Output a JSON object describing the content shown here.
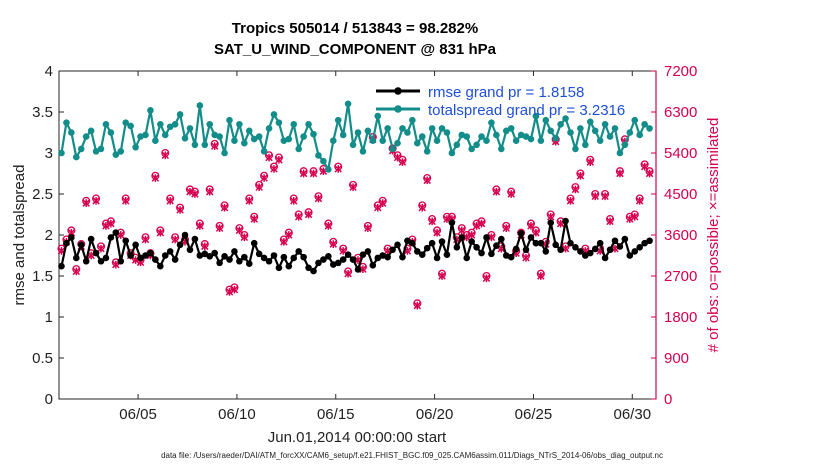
{
  "chart_data": {
    "type": "line",
    "title_line1": "Tropics 505014 / 513843 = 98.282%",
    "title_line2": "SAT_U_WIND_COMPONENT @ 831 hPa",
    "xlabel": "Jun.01,2014 00:00:00 start",
    "ylabel_left": "rmse and totalspread",
    "ylabel_right": "# of obs: o=possible; ×=assimilated",
    "footnote": "data file: /Users/raeder/DAI/ATM_forcXX/CAM6_setup/f.e21.FHIST_BGC.f09_025.CAM6assim.011/Diags_NTrS_2014-06/obs_diag_output.nc",
    "xlim": [
      1.0,
      31.2
    ],
    "ylim_left": [
      0,
      4
    ],
    "ylim_right": [
      0,
      7200
    ],
    "x_ticks": [
      5,
      10,
      15,
      20,
      25,
      30
    ],
    "x_tick_labels": [
      "06/05",
      "06/10",
      "06/15",
      "06/20",
      "06/25",
      "06/30"
    ],
    "y_ticks_left": [
      0,
      0.5,
      1,
      1.5,
      2,
      2.5,
      3,
      3.5,
      4
    ],
    "y_tick_labels_left": [
      "0",
      "0.5",
      "1",
      "1.5",
      "2",
      "2.5",
      "3",
      "3.5",
      "4"
    ],
    "y_ticks_right": [
      0,
      900,
      1800,
      2700,
      3600,
      4500,
      5400,
      6300,
      7200
    ],
    "y_tick_labels_right": [
      "0",
      "900",
      "1800",
      "2700",
      "3600",
      "4500",
      "5400",
      "6300",
      "7200"
    ],
    "legend": [
      {
        "label": "rmse grand pr = 1.8158",
        "color": "#000000"
      },
      {
        "label": "totalspread grand pr = 3.2316",
        "color": "#138d8a"
      }
    ],
    "colors": {
      "rmse": "#000000",
      "spread": "#138d8a",
      "obs": "#d6004f"
    },
    "x": [
      1.125,
      1.375,
      1.625,
      1.875,
      2.125,
      2.375,
      2.625,
      2.875,
      3.125,
      3.375,
      3.625,
      3.875,
      4.125,
      4.375,
      4.625,
      4.875,
      5.125,
      5.375,
      5.625,
      5.875,
      6.125,
      6.375,
      6.625,
      6.875,
      7.125,
      7.375,
      7.625,
      7.875,
      8.125,
      8.375,
      8.625,
      8.875,
      9.125,
      9.375,
      9.625,
      9.875,
      10.125,
      10.375,
      10.625,
      10.875,
      11.125,
      11.375,
      11.625,
      11.875,
      12.125,
      12.375,
      12.625,
      12.875,
      13.125,
      13.375,
      13.625,
      13.875,
      14.125,
      14.375,
      14.625,
      14.875,
      15.125,
      15.375,
      15.625,
      15.875,
      16.125,
      16.375,
      16.625,
      16.875,
      17.125,
      17.375,
      17.625,
      17.875,
      18.125,
      18.375,
      18.625,
      18.875,
      19.125,
      19.375,
      19.625,
      19.875,
      20.125,
      20.375,
      20.625,
      20.875,
      21.125,
      21.375,
      21.625,
      21.875,
      22.125,
      22.375,
      22.625,
      22.875,
      23.125,
      23.375,
      23.625,
      23.875,
      24.125,
      24.375,
      24.625,
      24.875,
      25.125,
      25.375,
      25.625,
      25.875,
      26.125,
      26.375,
      26.625,
      26.875,
      27.125,
      27.375,
      27.625,
      27.875,
      28.125,
      28.375,
      28.625,
      28.875,
      29.125,
      29.375,
      29.625,
      29.875,
      30.125,
      30.375,
      30.625,
      30.875
    ],
    "series": [
      {
        "name": "rmse",
        "values": [
          1.62,
          1.9,
          1.97,
          1.72,
          1.88,
          1.68,
          1.95,
          1.78,
          1.68,
          1.72,
          1.97,
          2.03,
          1.68,
          1.93,
          1.75,
          1.88,
          1.72,
          1.75,
          1.78,
          1.7,
          1.62,
          1.75,
          1.8,
          1.7,
          1.88,
          2.0,
          1.82,
          1.95,
          1.75,
          1.77,
          1.74,
          1.78,
          1.66,
          1.74,
          1.7,
          1.8,
          1.68,
          1.73,
          1.65,
          1.9,
          1.77,
          1.72,
          1.68,
          1.75,
          1.6,
          1.73,
          1.62,
          1.72,
          1.8,
          1.73,
          1.6,
          1.56,
          1.66,
          1.7,
          1.74,
          1.64,
          1.66,
          1.7,
          1.76,
          1.7,
          1.58,
          1.76,
          1.8,
          1.63,
          1.72,
          1.75,
          1.73,
          1.82,
          1.88,
          1.73,
          1.93,
          1.9,
          1.8,
          1.76,
          1.84,
          1.9,
          1.72,
          1.92,
          1.76,
          2.15,
          1.85,
          1.97,
          1.72,
          1.92,
          1.85,
          1.78,
          1.97,
          1.77,
          1.87,
          1.95,
          1.75,
          1.73,
          1.83,
          2.02,
          1.82,
          1.97,
          1.9,
          1.9,
          1.8,
          2.15,
          1.88,
          1.82,
          2.17,
          1.9,
          1.85,
          1.8,
          1.75,
          1.78,
          1.83,
          1.9,
          1.72,
          1.82,
          1.93,
          1.86,
          1.95,
          1.75,
          1.8,
          1.85,
          1.9,
          1.93
        ]
      },
      {
        "name": "totalspread",
        "values": [
          3.0,
          3.37,
          3.25,
          2.95,
          3.05,
          3.2,
          3.27,
          3.02,
          3.05,
          3.35,
          3.25,
          2.98,
          3.02,
          3.37,
          3.33,
          3.07,
          3.2,
          3.22,
          3.52,
          3.15,
          3.35,
          3.22,
          3.32,
          3.35,
          3.47,
          3.18,
          3.3,
          3.1,
          3.58,
          3.1,
          3.35,
          3.22,
          3.2,
          3.0,
          3.4,
          3.15,
          3.35,
          3.12,
          3.27,
          3.17,
          3.2,
          3.02,
          3.3,
          3.47,
          3.37,
          3.15,
          3.17,
          3.35,
          3.05,
          3.2,
          3.35,
          3.23,
          2.97,
          2.9,
          2.8,
          3.15,
          3.4,
          3.22,
          3.6,
          3.1,
          3.25,
          3.02,
          3.27,
          3.15,
          3.45,
          3.15,
          3.3,
          3.05,
          3.12,
          3.3,
          3.25,
          3.4,
          3.12,
          3.2,
          3.02,
          3.3,
          3.15,
          3.3,
          3.25,
          3.0,
          3.1,
          3.22,
          3.2,
          3.05,
          3.1,
          3.2,
          3.15,
          3.37,
          3.22,
          3.05,
          3.27,
          3.3,
          3.15,
          3.22,
          3.2,
          3.17,
          3.45,
          3.15,
          3.4,
          3.27,
          3.18,
          3.35,
          3.42,
          3.25,
          3.05,
          3.3,
          3.1,
          3.38,
          3.27,
          3.15,
          3.35,
          3.2,
          3.3,
          3.0,
          3.1,
          3.25,
          3.4,
          3.22,
          3.35,
          3.3
        ]
      },
      {
        "name": "obs_possible",
        "values": [
          3300,
          3500,
          3700,
          2850,
          3400,
          4350,
          3200,
          4400,
          3350,
          3850,
          3900,
          3000,
          3650,
          4400,
          3200,
          3100,
          3050,
          3550,
          3200,
          4900,
          3700,
          5400,
          4400,
          3550,
          4200,
          3500,
          4600,
          4550,
          3850,
          3400,
          4600,
          5600,
          3800,
          4250,
          2400,
          2450,
          3750,
          3600,
          4400,
          4000,
          4700,
          4900,
          5350,
          5100,
          5300,
          3500,
          3650,
          4400,
          4050,
          5000,
          4100,
          5000,
          4450,
          5050,
          3850,
          3450,
          5100,
          3300,
          2800,
          4700,
          3100,
          2900,
          3800,
          5750,
          4250,
          4350,
          3300,
          5500,
          5350,
          5250,
          3300,
          3500,
          2100,
          4250,
          4850,
          3950,
          3700,
          2750,
          4000,
          4000,
          3550,
          3750,
          3600,
          3650,
          3850,
          3900,
          2700,
          3600,
          4600,
          3350,
          3800,
          4550,
          3250,
          3650,
          3150,
          3850,
          3700,
          2750,
          3450,
          4050,
          5700,
          3900,
          3350,
          4400,
          4650,
          4950,
          3300,
          5250,
          4500,
          3300,
          4500,
          3950,
          3350,
          5000,
          5700,
          4000,
          4050,
          4400,
          5150,
          5000
        ]
      },
      {
        "name": "obs_assimilated",
        "values": [
          3250,
          3450,
          3650,
          2800,
          3350,
          4300,
          3150,
          4350,
          3300,
          3800,
          3850,
          2950,
          3600,
          4350,
          3150,
          3050,
          3000,
          3500,
          3150,
          4850,
          3650,
          5350,
          4350,
          3500,
          4150,
          3450,
          4550,
          4500,
          3800,
          3350,
          4550,
          5550,
          3750,
          4200,
          2350,
          2400,
          3700,
          3550,
          4350,
          3950,
          4650,
          4850,
          5300,
          5050,
          5250,
          3450,
          3600,
          4350,
          4000,
          4950,
          4050,
          4950,
          4400,
          5000,
          3800,
          3400,
          5050,
          3250,
          2750,
          4650,
          3050,
          2850,
          3750,
          5700,
          4200,
          4300,
          3250,
          5450,
          5300,
          5200,
          3250,
          3450,
          2050,
          4200,
          4800,
          3900,
          3650,
          2700,
          3950,
          3950,
          3500,
          3700,
          3550,
          3600,
          3800,
          3850,
          2650,
          3550,
          4550,
          3300,
          3750,
          4500,
          3200,
          3600,
          3100,
          3800,
          3650,
          2700,
          3400,
          4000,
          5650,
          3850,
          3300,
          4350,
          4600,
          4900,
          3250,
          5200,
          4450,
          3250,
          4450,
          3900,
          3300,
          4950,
          5650,
          3950,
          4000,
          4350,
          5100,
          4950
        ]
      }
    ]
  }
}
